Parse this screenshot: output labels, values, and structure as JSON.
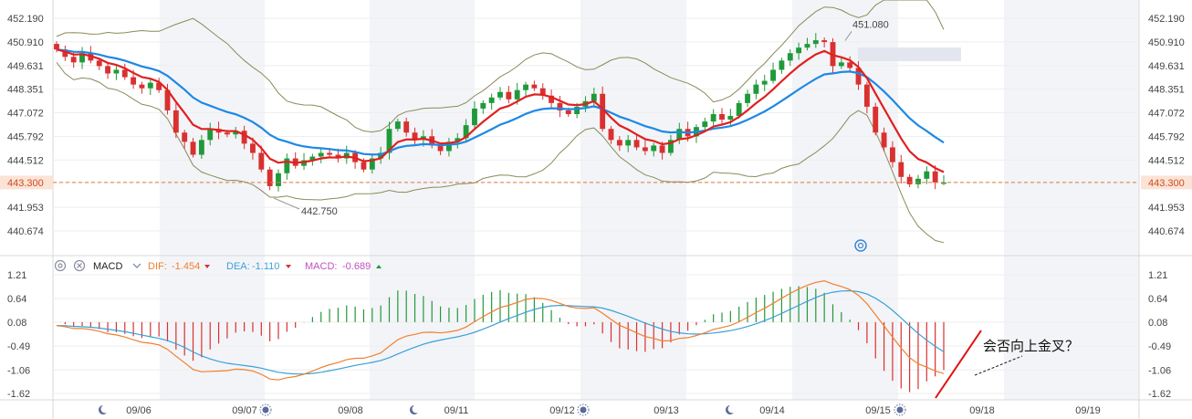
{
  "chart_data": [
    {
      "type": "candlestick",
      "panel": "price",
      "y_ticks": [
        "452.190",
        "450.910",
        "449.631",
        "448.351",
        "447.072",
        "445.792",
        "444.512",
        "443.300",
        "441.953",
        "440.674"
      ],
      "ylim": [
        440.0,
        452.6
      ],
      "last_price": 443.3,
      "last_price_label": "443.300",
      "high_marker": {
        "label": "451.080",
        "value": 451.08
      },
      "low_marker": {
        "label": "442.750",
        "value": 442.75
      },
      "x_labels": [
        "09/06",
        "09/07",
        "09/08",
        "09/11",
        "09/12",
        "09/13",
        "09/14",
        "09/15",
        "09/18",
        "09/19"
      ],
      "ma_fast_color": "#e02020",
      "ma_slow_color": "#1e88e5",
      "band_color": "#8a8a5a",
      "up_color": "#1f9a3a",
      "down_color": "#d93030",
      "close_series": [
        450.5,
        450.1,
        449.8,
        450.3,
        449.9,
        449.6,
        449.2,
        449.4,
        449.0,
        448.6,
        448.4,
        448.7,
        448.3,
        447.2,
        446.0,
        445.5,
        444.8,
        445.6,
        446.2,
        446.0,
        445.9,
        446.1,
        445.4,
        444.9,
        444.0,
        443.1,
        443.8,
        444.6,
        444.2,
        444.5,
        444.7,
        444.9,
        444.8,
        444.6,
        444.9,
        444.4,
        444.0,
        444.6,
        444.9,
        446.2,
        446.6,
        446.0,
        445.6,
        445.8,
        445.3,
        445.0,
        445.5,
        445.7,
        446.4,
        447.3,
        447.6,
        447.9,
        448.2,
        447.8,
        448.3,
        448.6,
        448.4,
        448.0,
        447.6,
        447.2,
        447.0,
        447.4,
        447.7,
        448.1,
        446.2,
        445.6,
        445.3,
        445.6,
        445.2,
        445.0,
        445.3,
        444.9,
        445.6,
        446.2,
        445.8,
        446.3,
        446.6,
        447.0,
        446.7,
        446.9,
        447.6,
        448.1,
        448.6,
        448.8,
        449.4,
        449.9,
        450.3,
        450.6,
        450.8,
        451.0,
        450.9,
        449.6,
        449.8,
        449.5,
        448.6,
        447.4,
        446.0,
        445.2,
        444.4,
        443.6,
        443.2,
        443.5,
        443.9,
        443.3,
        443.3
      ],
      "macd": {
        "legend": {
          "name": "MACD",
          "dif_label": "DIF:",
          "dif_value": "-1.454",
          "dea_label": "DEA:",
          "dea_value": "-1.110",
          "macd_label": "MACD:",
          "macd_value": "-0.689"
        },
        "dif_color": "#f08030",
        "dea_color": "#3aa0d8",
        "pos_color": "#1f9a3a",
        "neg_color": "#d93030",
        "y_ticks": [
          "1.21",
          "0.64",
          "0.08",
          "-0.49",
          "-1.06",
          "-1.62"
        ],
        "ylim": [
          -1.75,
          1.3
        ],
        "annotation": "会否向上金叉？"
      }
    }
  ]
}
